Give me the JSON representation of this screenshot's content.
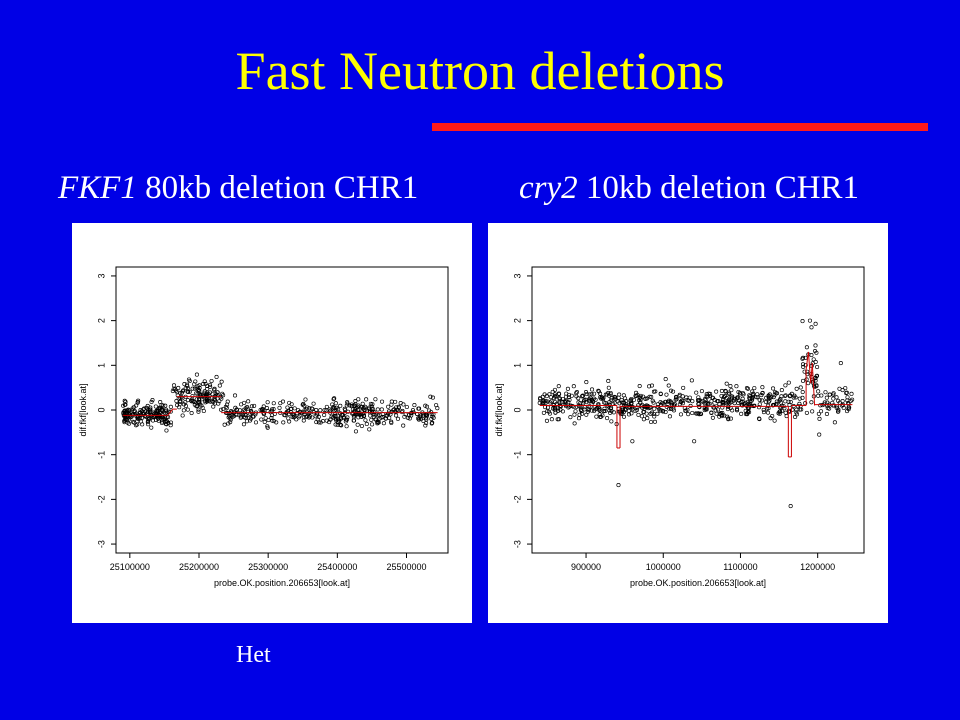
{
  "slide": {
    "title": "Fast Neutron deletions",
    "bottom_label": "Het",
    "left_heading_gene": "FKF1",
    "left_heading_rest": " 80kb deletion  CHR1",
    "right_heading_gene": "cry2",
    "right_heading_rest": " 10kb deletion  CHR1"
  },
  "colors": {
    "background": "#0000e6",
    "title": "#ffff00",
    "rule": "#ff1a1a",
    "segment_line": "#cc0000"
  },
  "chart_data": [
    {
      "type": "scatter",
      "title": "",
      "xlabel": "probe.OK.position.206653[look.at]",
      "ylabel": "dif.fkf[look.at]",
      "xlim": [
        25080000,
        25560000
      ],
      "ylim": [
        -3.2,
        3.2
      ],
      "xticks": [
        25100000,
        25200000,
        25300000,
        25400000,
        25500000
      ],
      "yticks": [
        -3,
        -2,
        -1,
        0,
        1,
        2,
        3
      ],
      "grid": false,
      "series": [
        {
          "clusters": [
            {
              "x": [
                25090000,
                25160000
              ],
              "y_mean": -0.1,
              "sd": 0.14,
              "n": 180
            },
            {
              "x": [
                25162000,
                25235000
              ],
              "y_mean": 0.3,
              "sd": 0.18,
              "n": 140
            },
            {
              "x": [
                25235000,
                25300000
              ],
              "y_mean": -0.08,
              "sd": 0.14,
              "n": 80
            },
            {
              "x": [
                25300000,
                25390000
              ],
              "y_mean": -0.06,
              "sd": 0.14,
              "n": 90
            },
            {
              "x": [
                25390000,
                25460000
              ],
              "y_mean": -0.1,
              "sd": 0.16,
              "n": 130
            },
            {
              "x": [
                25460000,
                25545000
              ],
              "y_mean": -0.08,
              "sd": 0.14,
              "n": 90
            }
          ],
          "segments": [
            {
              "x0": 25090000,
              "x1": 25155000,
              "y": -0.12
            },
            {
              "x0": 25155000,
              "x1": 25162000,
              "y": -0.12,
              "y1": 0.02
            },
            {
              "x0": 25162000,
              "x1": 25168000,
              "y": 0.02
            },
            {
              "x0": 25168000,
              "x1": 25232000,
              "y": 0.3
            },
            {
              "x0": 25232000,
              "x1": 25545000,
              "y": -0.06
            }
          ]
        }
      ]
    },
    {
      "type": "scatter",
      "title": "",
      "xlabel": "probe.OK.position.206653[look.at]",
      "ylabel": "dif.fkf[look.at]",
      "xlim": [
        830000,
        1260000
      ],
      "ylim": [
        -3.2,
        3.2
      ],
      "xticks": [
        900000,
        1000000,
        1100000,
        1200000
      ],
      "yticks": [
        -3,
        -2,
        -1,
        0,
        1,
        2,
        3
      ],
      "grid": false,
      "series": [
        {
          "clusters": [
            {
              "x": [
                840000,
                1180000
              ],
              "y_mean": 0.15,
              "sd": 0.17,
              "n": 620
            },
            {
              "x": [
                1180000,
                1200000
              ],
              "y_mean": 0.9,
              "sd": 0.4,
              "n": 45
            },
            {
              "x": [
                1200000,
                1245000
              ],
              "y_mean": 0.15,
              "sd": 0.15,
              "n": 55
            }
          ],
          "outliers": [
            {
              "x": 942000,
              "y": -1.68
            },
            {
              "x": 1165000,
              "y": -2.15
            },
            {
              "x": 1190000,
              "y": 2.0
            },
            {
              "x": 1192000,
              "y": 1.85
            },
            {
              "x": 960000,
              "y": -0.7
            },
            {
              "x": 1040000,
              "y": -0.7
            },
            {
              "x": 1202000,
              "y": -0.55
            },
            {
              "x": 1230000,
              "y": 1.05
            }
          ],
          "segments": [
            {
              "x0": 840000,
              "x1": 940000,
              "y": 0.1
            },
            {
              "x0": 940000,
              "x1": 940000,
              "y": 0.1,
              "y1": -0.85
            },
            {
              "x0": 940000,
              "x1": 944000,
              "y": -0.85
            },
            {
              "x0": 944000,
              "x1": 944000,
              "y": -0.85,
              "y1": 0.1
            },
            {
              "x0": 944000,
              "x1": 1162000,
              "y": 0.08
            },
            {
              "x0": 1162000,
              "x1": 1162000,
              "y": 0.08,
              "y1": -1.05
            },
            {
              "x0": 1162000,
              "x1": 1166000,
              "y": -1.05
            },
            {
              "x0": 1166000,
              "x1": 1166000,
              "y": -1.05,
              "y1": 0.08
            },
            {
              "x0": 1166000,
              "x1": 1185000,
              "y": 0.1
            },
            {
              "x0": 1185000,
              "x1": 1185000,
              "y": 0.1,
              "y1": 0.9
            },
            {
              "x0": 1185000,
              "x1": 1188000,
              "y": 0.9,
              "y1": 1.3
            },
            {
              "x0": 1188000,
              "x1": 1191000,
              "y": 1.3,
              "y1": 0.6
            },
            {
              "x0": 1191000,
              "x1": 1193000,
              "y": 0.6,
              "y1": 1.05
            },
            {
              "x0": 1193000,
              "x1": 1196000,
              "y": 1.05,
              "y1": 0.1
            },
            {
              "x0": 1196000,
              "x1": 1245000,
              "y": 0.12
            }
          ]
        }
      ]
    }
  ]
}
